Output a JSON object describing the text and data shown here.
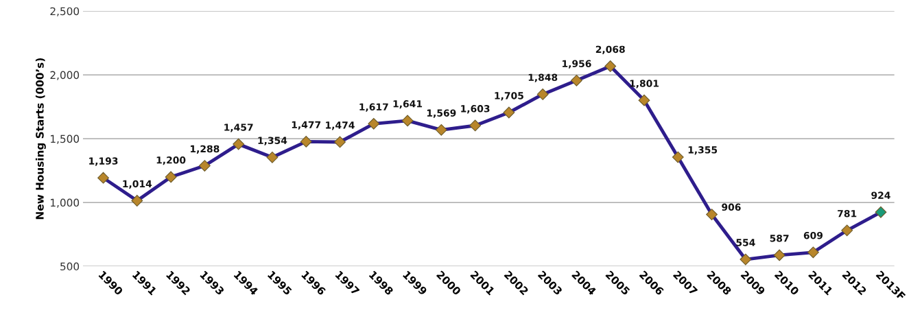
{
  "chart_data": {
    "type": "line",
    "ylabel": "New Housing Starts (000’s)",
    "categories": [
      "1990",
      "1991",
      "1992",
      "1993",
      "1994",
      "1995",
      "1996",
      "1997",
      "1998",
      "1999",
      "2000",
      "2001",
      "2002",
      "2003",
      "2004",
      "2005",
      "2006",
      "2007",
      "2008",
      "2009",
      "2010",
      "2011",
      "2012",
      "2013F"
    ],
    "series": [
      {
        "color": "#2e1d8c",
        "values": [
          1193,
          1014,
          1200,
          1288,
          1457,
          1354,
          1477,
          1474,
          1617,
          1641,
          1569,
          1603,
          1705,
          1848,
          1956,
          2068,
          1801,
          1355,
          906,
          554,
          587,
          609,
          781,
          924
        ],
        "colors": [
          "#b8862b",
          "#b8862b",
          "#b8862b",
          "#b8862b",
          "#b8862b",
          "#b8862b",
          "#b8862b",
          "#b8862b",
          "#b8862b",
          "#b8862b",
          "#b8862b",
          "#b8862b",
          "#b8862b",
          "#b8862b",
          "#b8862b",
          "#b8862b",
          "#b8862b",
          "#b8862b",
          "#b8862b",
          "#b8862b",
          "#b8862b",
          "#b8862b",
          "#b8862b",
          "#1a9a78"
        ],
        "value_labels": [
          "1,193",
          "1,014",
          "1,200",
          "1,288",
          "1,457",
          "1,354",
          "1,477",
          "1,474",
          "1,617",
          "1,641",
          "1,569",
          "1,603",
          "1,705",
          "1,848",
          "1,956",
          "2,068",
          "1,801",
          "1,355",
          "906",
          "554",
          "587",
          "609",
          "781",
          "924"
        ]
      }
    ],
    "ylim": [
      500,
      2500
    ],
    "yticks": [
      {
        "value": 500,
        "label": "500"
      },
      {
        "value": 1000,
        "label": "1,000"
      },
      {
        "value": 1500,
        "label": "1,500"
      },
      {
        "value": 2000,
        "label": "2,000"
      },
      {
        "value": 2500,
        "label": "2,500"
      }
    ],
    "grid": "y",
    "marker": "diamond",
    "line_style": "solid",
    "legend": false
  }
}
